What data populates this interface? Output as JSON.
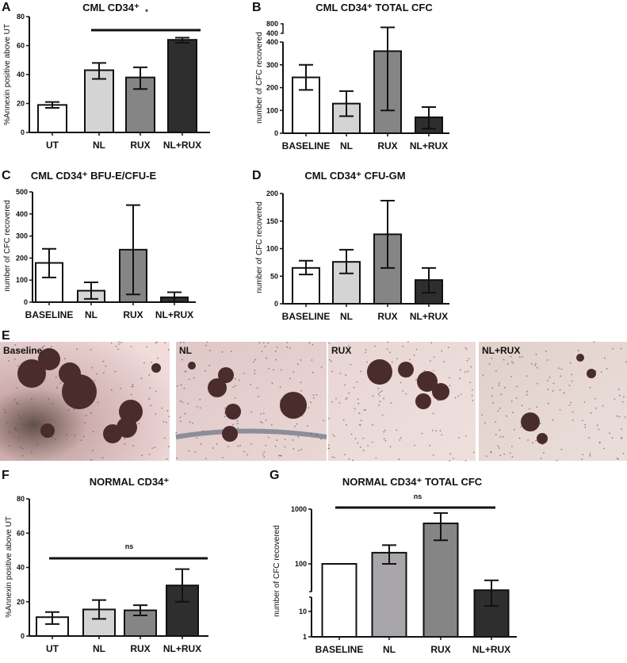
{
  "chart_data": [
    {
      "id": "A",
      "panel": "A",
      "type": "bar",
      "title": "CML CD34⁺",
      "ylabel": "%Annexin positive above UT",
      "ylim": [
        0,
        80
      ],
      "yticks": [
        0,
        20,
        40,
        60,
        80
      ],
      "categories": [
        "UT",
        "NL",
        "RUX",
        "NL+RUX"
      ],
      "values": [
        19,
        43,
        38,
        64
      ],
      "err_low": [
        17,
        37,
        30,
        62
      ],
      "err_high": [
        21,
        48,
        45,
        65.5
      ],
      "colors": [
        "#ffffff",
        "#d4d4d4",
        "#858585",
        "#2e2e2e"
      ],
      "significance": {
        "label": "*",
        "from": "NL",
        "to": "NL+RUX"
      }
    },
    {
      "id": "B",
      "panel": "B",
      "type": "bar",
      "title": "CML CD34⁺ TOTAL CFC",
      "ylabel": "number of CFC recovered",
      "ylim": [
        0,
        800
      ],
      "axis_break": [
        400,
        400
      ],
      "yticks": [
        0,
        100,
        200,
        300,
        400
      ],
      "yticks_upper": [
        400,
        800
      ],
      "categories": [
        "BASELINE",
        "NL",
        "RUX",
        "NL+RUX"
      ],
      "values": [
        245,
        130,
        360,
        70
      ],
      "err_low": [
        190,
        75,
        100,
        20
      ],
      "err_high": [
        300,
        185,
        650,
        115
      ],
      "colors": [
        "#ffffff",
        "#d4d4d4",
        "#858585",
        "#2e2e2e"
      ]
    },
    {
      "id": "C",
      "panel": "C",
      "type": "bar",
      "title": "CML CD34⁺ BFU-E/CFU-E",
      "ylabel": "number of CFC recovered",
      "ylim": [
        0,
        500
      ],
      "yticks": [
        0,
        100,
        200,
        300,
        400,
        500
      ],
      "categories": [
        "BASELINE",
        "NL",
        "RUX",
        "NL+RUX"
      ],
      "values": [
        178,
        52,
        238,
        22
      ],
      "err_low": [
        112,
        15,
        35,
        2
      ],
      "err_high": [
        242,
        90,
        440,
        45
      ],
      "colors": [
        "#ffffff",
        "#d4d4d4",
        "#858585",
        "#2e2e2e"
      ]
    },
    {
      "id": "D",
      "panel": "D",
      "type": "bar",
      "title": "CML CD34⁺ CFU-GM",
      "ylabel": "number of CFC recovered",
      "ylim": [
        0,
        200
      ],
      "yticks": [
        0,
        50,
        100,
        150,
        200
      ],
      "categories": [
        "BASELINE",
        "NL",
        "RUX",
        "NL+RUX"
      ],
      "values": [
        65,
        76,
        126,
        43
      ],
      "err_low": [
        53,
        55,
        65,
        20
      ],
      "err_high": [
        78,
        98,
        187,
        65
      ],
      "colors": [
        "#ffffff",
        "#d4d4d4",
        "#858585",
        "#2e2e2e"
      ]
    },
    {
      "id": "F",
      "panel": "F",
      "type": "bar",
      "title": "NORMAL CD34⁺",
      "ylabel": "%Annexin positive above UT",
      "ylim": [
        0,
        80
      ],
      "yticks": [
        0,
        20,
        40,
        60,
        80
      ],
      "categories": [
        "UT",
        "NL",
        "RUX",
        "NL+RUX"
      ],
      "values": [
        11,
        15.5,
        15,
        29.5
      ],
      "err_low": [
        7,
        10,
        12,
        20
      ],
      "err_high": [
        14,
        21,
        18,
        39
      ],
      "colors": [
        "#ffffff",
        "#d4d4d4",
        "#858585",
        "#2e2e2e"
      ],
      "significance": {
        "label": "ns",
        "from": "UT",
        "to": "NL+RUX"
      }
    },
    {
      "id": "G",
      "panel": "G",
      "type": "bar",
      "title": "NORMAL CD34⁺ TOTAL CFC",
      "ylabel": "number of CFC recovered",
      "yscale": "log",
      "ylim": [
        1,
        1000
      ],
      "yticks": [
        1,
        10,
        100,
        1000
      ],
      "categories": [
        "BASELINE",
        "NL",
        "RUX",
        "NL+RUX"
      ],
      "values": [
        100,
        160,
        550,
        28
      ],
      "err_low": [
        100,
        100,
        270,
        13
      ],
      "err_high": [
        100,
        220,
        850,
        45
      ],
      "colors": [
        "#ffffff",
        "#a9a6ab",
        "#858585",
        "#2e2e2e"
      ],
      "significance": {
        "label": "ns",
        "from": "BASELINE",
        "to": "NL+RUX"
      }
    }
  ],
  "images": {
    "panel": "E",
    "items": [
      {
        "label": "Baseline",
        "background": "#e9c9c9"
      },
      {
        "label": "NL",
        "background": "#e2cccc"
      },
      {
        "label": "RUX",
        "background": "#e6d2d0"
      },
      {
        "label": "NL+RUX",
        "background": "#e4d4d0"
      }
    ]
  }
}
